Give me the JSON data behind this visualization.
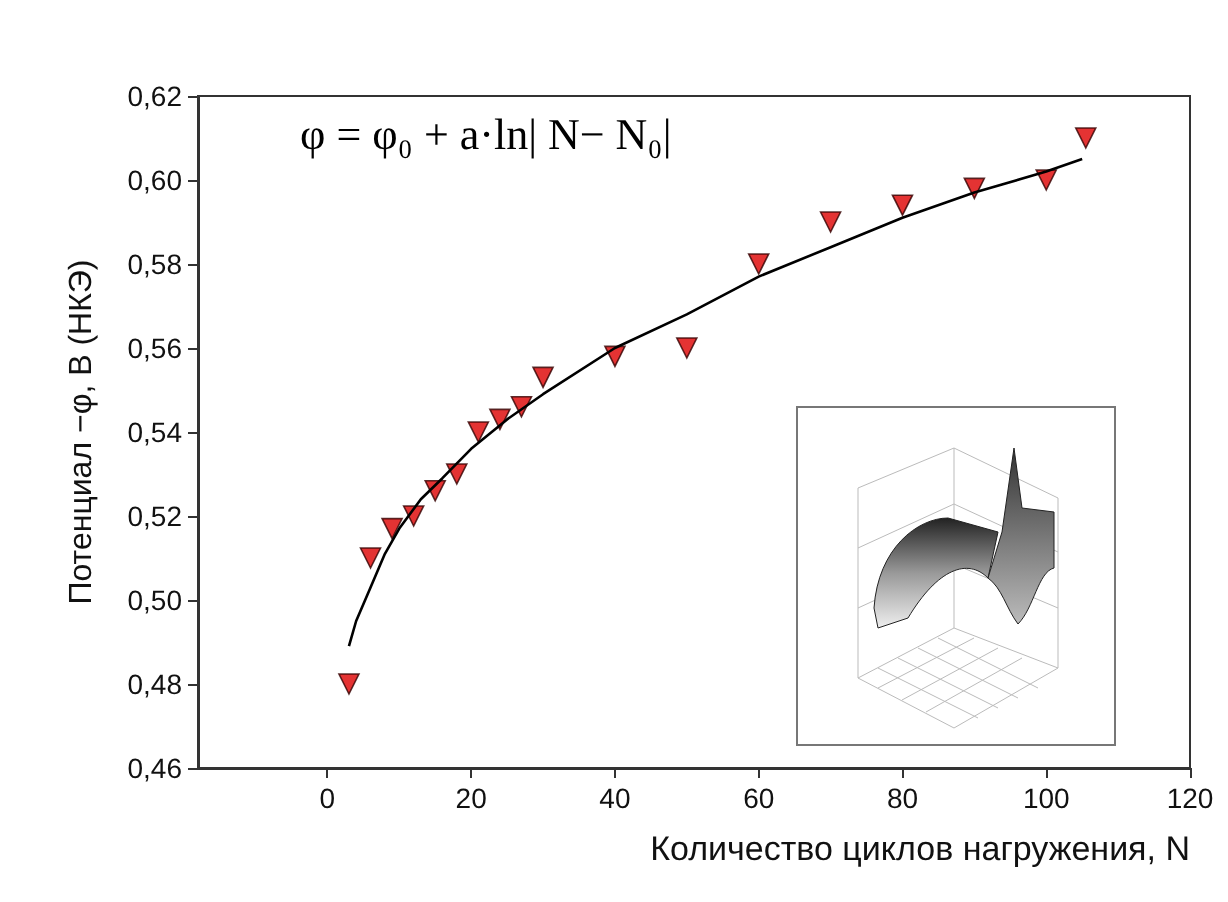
{
  "chart_data": {
    "type": "scatter",
    "xlabel": "Количество циклов нагружения, N",
    "ylabel": "Потенциал −φ, В (НКЭ)",
    "annotations": [
      "φ = φ₀ + a·ln| N− N₀|"
    ],
    "xlim": [
      -18,
      120
    ],
    "xticks": [
      0,
      20,
      40,
      60,
      80,
      100,
      120
    ],
    "ylim": [
      0.46,
      0.62
    ],
    "yticks": [
      {
        "value": 0.46,
        "label": "0,46"
      },
      {
        "value": 0.48,
        "label": "0,48"
      },
      {
        "value": 0.5,
        "label": "0,50"
      },
      {
        "value": 0.52,
        "label": "0,52"
      },
      {
        "value": 0.54,
        "label": "0,54"
      },
      {
        "value": 0.56,
        "label": "0,56"
      },
      {
        "value": 0.58,
        "label": "0,58"
      },
      {
        "value": 0.6,
        "label": "0,60"
      },
      {
        "value": 0.62,
        "label": "0,62"
      }
    ],
    "grid": false,
    "marker": "triangle",
    "series": [
      {
        "color": "#dd0000",
        "x": [
          3,
          6,
          9,
          12,
          15,
          18,
          21,
          24,
          27,
          30,
          40,
          50,
          60,
          70,
          80,
          90,
          100,
          105.5
        ],
        "values": [
          0.48,
          0.51,
          0.517,
          0.52,
          0.526,
          0.53,
          0.54,
          0.543,
          0.546,
          0.553,
          0.558,
          0.56,
          0.58,
          0.59,
          0.594,
          0.598,
          0.6,
          0.61
        ]
      },
      {
        "type": "line",
        "color": "#000000",
        "marker": "none",
        "x": [
          3,
          4,
          6,
          8,
          10,
          13,
          16,
          20,
          25,
          30,
          40,
          50,
          60,
          70,
          80,
          90,
          100,
          105
        ],
        "values": [
          0.489,
          0.495,
          0.503,
          0.511,
          0.517,
          0.524,
          0.529,
          0.536,
          0.543,
          0.549,
          0.56,
          0.568,
          0.577,
          0.584,
          0.591,
          0.597,
          0.602,
          0.605
        ]
      }
    ]
  }
}
